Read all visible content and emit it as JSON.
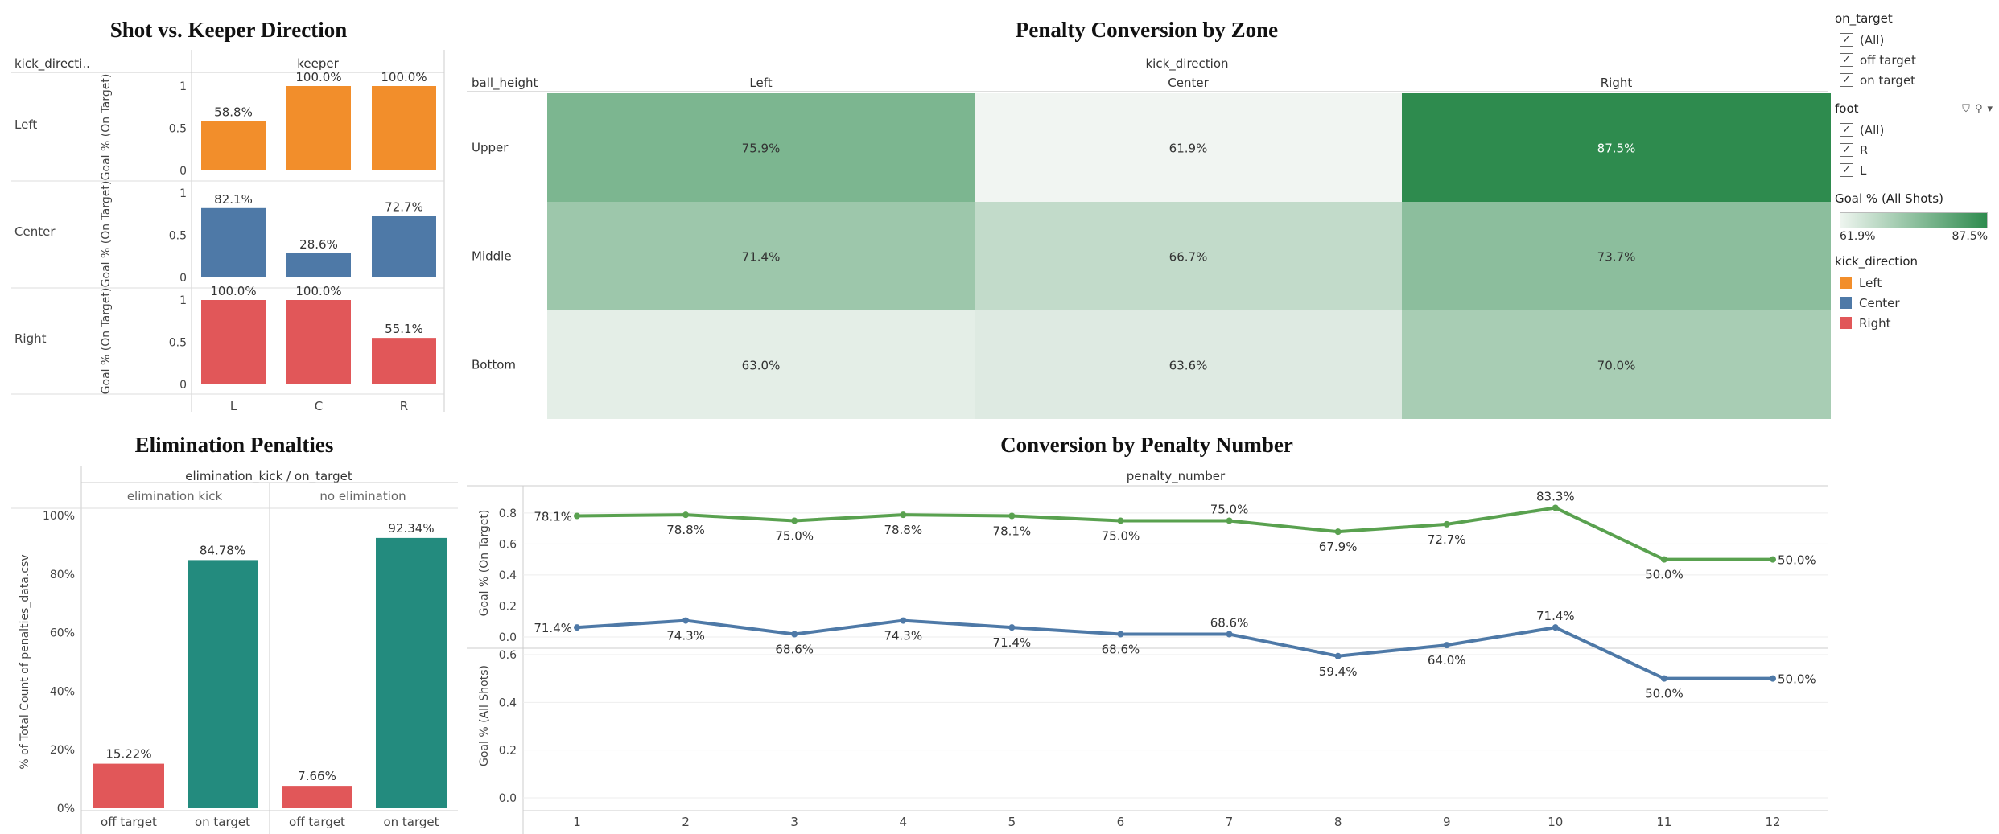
{
  "titles": {
    "shot_keeper": "Shot vs. Keeper Direction",
    "zone": "Penalty Conversion by Zone",
    "elimination": "Elimination Penalties",
    "penalty_number": "Conversion by Penalty Number"
  },
  "colors": {
    "left": "#f28e2b",
    "center": "#4e79a7",
    "right": "#e15759",
    "teal": "#238b7e",
    "green_line": "#59a14f",
    "blue_line": "#4e79a7"
  },
  "shot_keeper": {
    "row_header": "kick_directi..",
    "col_header": "keeper",
    "y_label": "Goal % (On Target)",
    "y_ticks": [
      "0",
      "0.5",
      "1"
    ],
    "keepers": [
      "L",
      "C",
      "R"
    ],
    "rows": [
      {
        "name": "Left",
        "values": [
          0.588,
          1.0,
          1.0
        ],
        "labels": [
          "58.8%",
          "100.0%",
          "100.0%"
        ]
      },
      {
        "name": "Center",
        "values": [
          0.821,
          0.286,
          0.727
        ],
        "labels": [
          "82.1%",
          "28.6%",
          "72.7%"
        ]
      },
      {
        "name": "Right",
        "values": [
          1.0,
          1.0,
          0.551
        ],
        "labels": [
          "100.0%",
          "100.0%",
          "55.1%"
        ]
      }
    ]
  },
  "zone": {
    "col_header": "kick_direction",
    "row_header": "ball_height",
    "columns": [
      "Left",
      "Center",
      "Right"
    ],
    "rows": [
      {
        "name": "Upper",
        "values": [
          75.9,
          61.9,
          87.5
        ],
        "labels": [
          "75.9%",
          "61.9%",
          "87.5%"
        ]
      },
      {
        "name": "Middle",
        "values": [
          71.4,
          66.7,
          73.7
        ],
        "labels": [
          "71.4%",
          "66.7%",
          "73.7%"
        ]
      },
      {
        "name": "Bottom",
        "values": [
          63.0,
          63.6,
          70.0
        ],
        "labels": [
          "63.0%",
          "63.6%",
          "70.0%"
        ]
      }
    ],
    "min": 61.9,
    "max": 87.5
  },
  "elimination": {
    "header": "elimination_kick / on_target",
    "groups": [
      "elimination kick",
      "no elimination"
    ],
    "y_label": "% of Total Count of penalties_data.csv",
    "y_ticks": [
      "0%",
      "20%",
      "40%",
      "60%",
      "80%",
      "100%"
    ],
    "bars": [
      {
        "group": 0,
        "cat": "off target",
        "value": 15.22,
        "label": "15.22%"
      },
      {
        "group": 0,
        "cat": "on target",
        "value": 84.78,
        "label": "84.78%"
      },
      {
        "group": 1,
        "cat": "off target",
        "value": 7.66,
        "label": "7.66%"
      },
      {
        "group": 1,
        "cat": "on target",
        "value": 92.34,
        "label": "92.34%"
      }
    ]
  },
  "penalty_number": {
    "header": "penalty_number",
    "x": [
      "1",
      "2",
      "3",
      "4",
      "5",
      "6",
      "7",
      "8",
      "9",
      "10",
      "11",
      "12"
    ],
    "top": {
      "y_label": "Goal % (On Target)",
      "y_ticks": [
        "0.0",
        "0.2",
        "0.4",
        "0.6",
        "0.8"
      ],
      "values": [
        0.781,
        0.788,
        0.75,
        0.788,
        0.781,
        0.75,
        0.75,
        0.679,
        0.727,
        0.833,
        0.5,
        0.5
      ],
      "labels": [
        "78.1%",
        "78.8%",
        "75.0%",
        "78.8%",
        "78.1%",
        "75.0%",
        "75.0%",
        "67.9%",
        "72.7%",
        "83.3%",
        "50.0%",
        "50.0%"
      ]
    },
    "bottom": {
      "y_label": "Goal % (All Shots)",
      "y_ticks": [
        "0.0",
        "0.2",
        "0.4",
        "0.6"
      ],
      "values": [
        0.714,
        0.743,
        0.686,
        0.743,
        0.714,
        0.686,
        0.686,
        0.594,
        0.64,
        0.714,
        0.5,
        0.5
      ],
      "labels": [
        "71.4%",
        "74.3%",
        "68.6%",
        "74.3%",
        "71.4%",
        "68.6%",
        "68.6%",
        "59.4%",
        "64.0%",
        "71.4%",
        "50.0%",
        "50.0%"
      ]
    }
  },
  "filters": {
    "on_target": {
      "title": "on_target",
      "items": [
        "(All)",
        "off target",
        "on target"
      ]
    },
    "foot": {
      "title": "foot",
      "items": [
        "(All)",
        "R",
        "L"
      ]
    },
    "goal_legend": {
      "title": "Goal % (All Shots)",
      "min_label": "61.9%",
      "max_label": "87.5%"
    },
    "kick_direction": {
      "title": "kick_direction",
      "items": [
        "Left",
        "Center",
        "Right"
      ]
    }
  }
}
